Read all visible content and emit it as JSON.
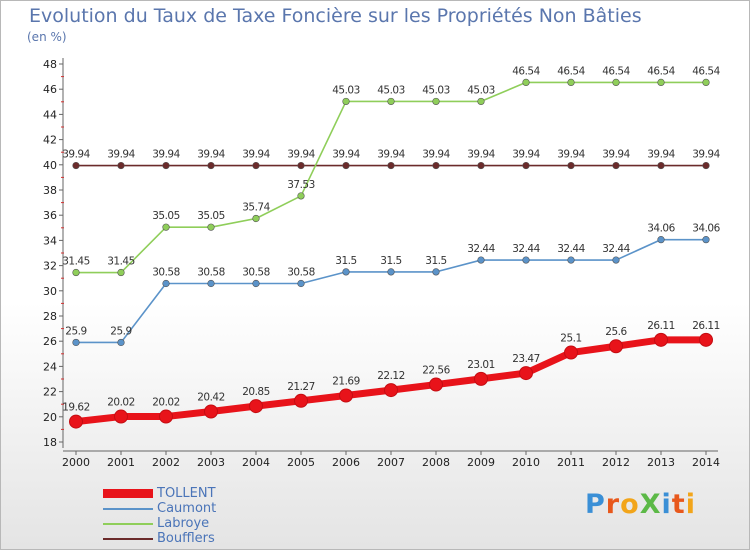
{
  "title": "Evolution du Taux de Taxe Foncière sur les Propriétés Non Bâties",
  "unit_label": "(en %)",
  "brand": "ProXiti",
  "chart_data": {
    "type": "line",
    "categories": [
      "2000",
      "2001",
      "2002",
      "2003",
      "2004",
      "2005",
      "2006",
      "2007",
      "2008",
      "2009",
      "2010",
      "2011",
      "2012",
      "2013",
      "2014"
    ],
    "ylim": [
      18,
      48
    ],
    "yticks": [
      18,
      20,
      22,
      24,
      26,
      28,
      30,
      32,
      34,
      36,
      38,
      40,
      42,
      44,
      46,
      48
    ],
    "grid": false,
    "legend_position": "bottom-left",
    "series": [
      {
        "name": "TOLLENT",
        "color": "#e8131a",
        "values": [
          19.62,
          20.02,
          20.02,
          20.42,
          20.85,
          21.27,
          21.69,
          22.12,
          22.56,
          23.01,
          23.47,
          25.1,
          25.6,
          26.11,
          26.11
        ],
        "labels": [
          "19.62",
          "20.02",
          "20.02",
          "20.42",
          "20.85",
          "21.27",
          "21.69",
          "22.12",
          "22.56",
          "23.01",
          "23.47",
          "25.1",
          "25.6",
          "26.11",
          "26.11"
        ]
      },
      {
        "name": "Caumont",
        "color": "#5b93c9",
        "values": [
          25.9,
          25.9,
          30.58,
          30.58,
          30.58,
          30.58,
          31.5,
          31.5,
          31.5,
          32.44,
          32.44,
          32.44,
          32.44,
          34.06,
          34.06
        ],
        "labels": [
          "25.9",
          "25.9",
          "30.58",
          "30.58",
          "30.58",
          "30.58",
          "31.5",
          "31.5",
          "31.5",
          "32.44",
          "32.44",
          "32.44",
          "32.44",
          "34.06",
          "34.06"
        ]
      },
      {
        "name": "Labroye",
        "color": "#8fce5a",
        "values": [
          31.45,
          31.45,
          35.05,
          35.05,
          35.74,
          37.53,
          45.03,
          45.03,
          45.03,
          45.03,
          46.54,
          46.54,
          46.54,
          46.54,
          46.54
        ],
        "labels": [
          "31.45",
          "31.45",
          "35.05",
          "35.05",
          "35.74",
          "37.53",
          "45.03",
          "45.03",
          "45.03",
          "45.03",
          "46.54",
          "46.54",
          "46.54",
          "46.54",
          "46.54"
        ]
      },
      {
        "name": "Boufflers",
        "color": "#6b2b2b",
        "values": [
          39.94,
          39.94,
          39.94,
          39.94,
          39.94,
          39.94,
          39.94,
          39.94,
          39.94,
          39.94,
          39.94,
          39.94,
          39.94,
          39.94,
          39.94
        ],
        "labels": [
          "39.94",
          "39.94",
          "39.94",
          "39.94",
          "39.94",
          "39.94",
          "39.94",
          "39.94",
          "39.94",
          "39.94",
          "39.94",
          "39.94",
          "39.94",
          "39.94",
          "39.94"
        ]
      }
    ]
  }
}
